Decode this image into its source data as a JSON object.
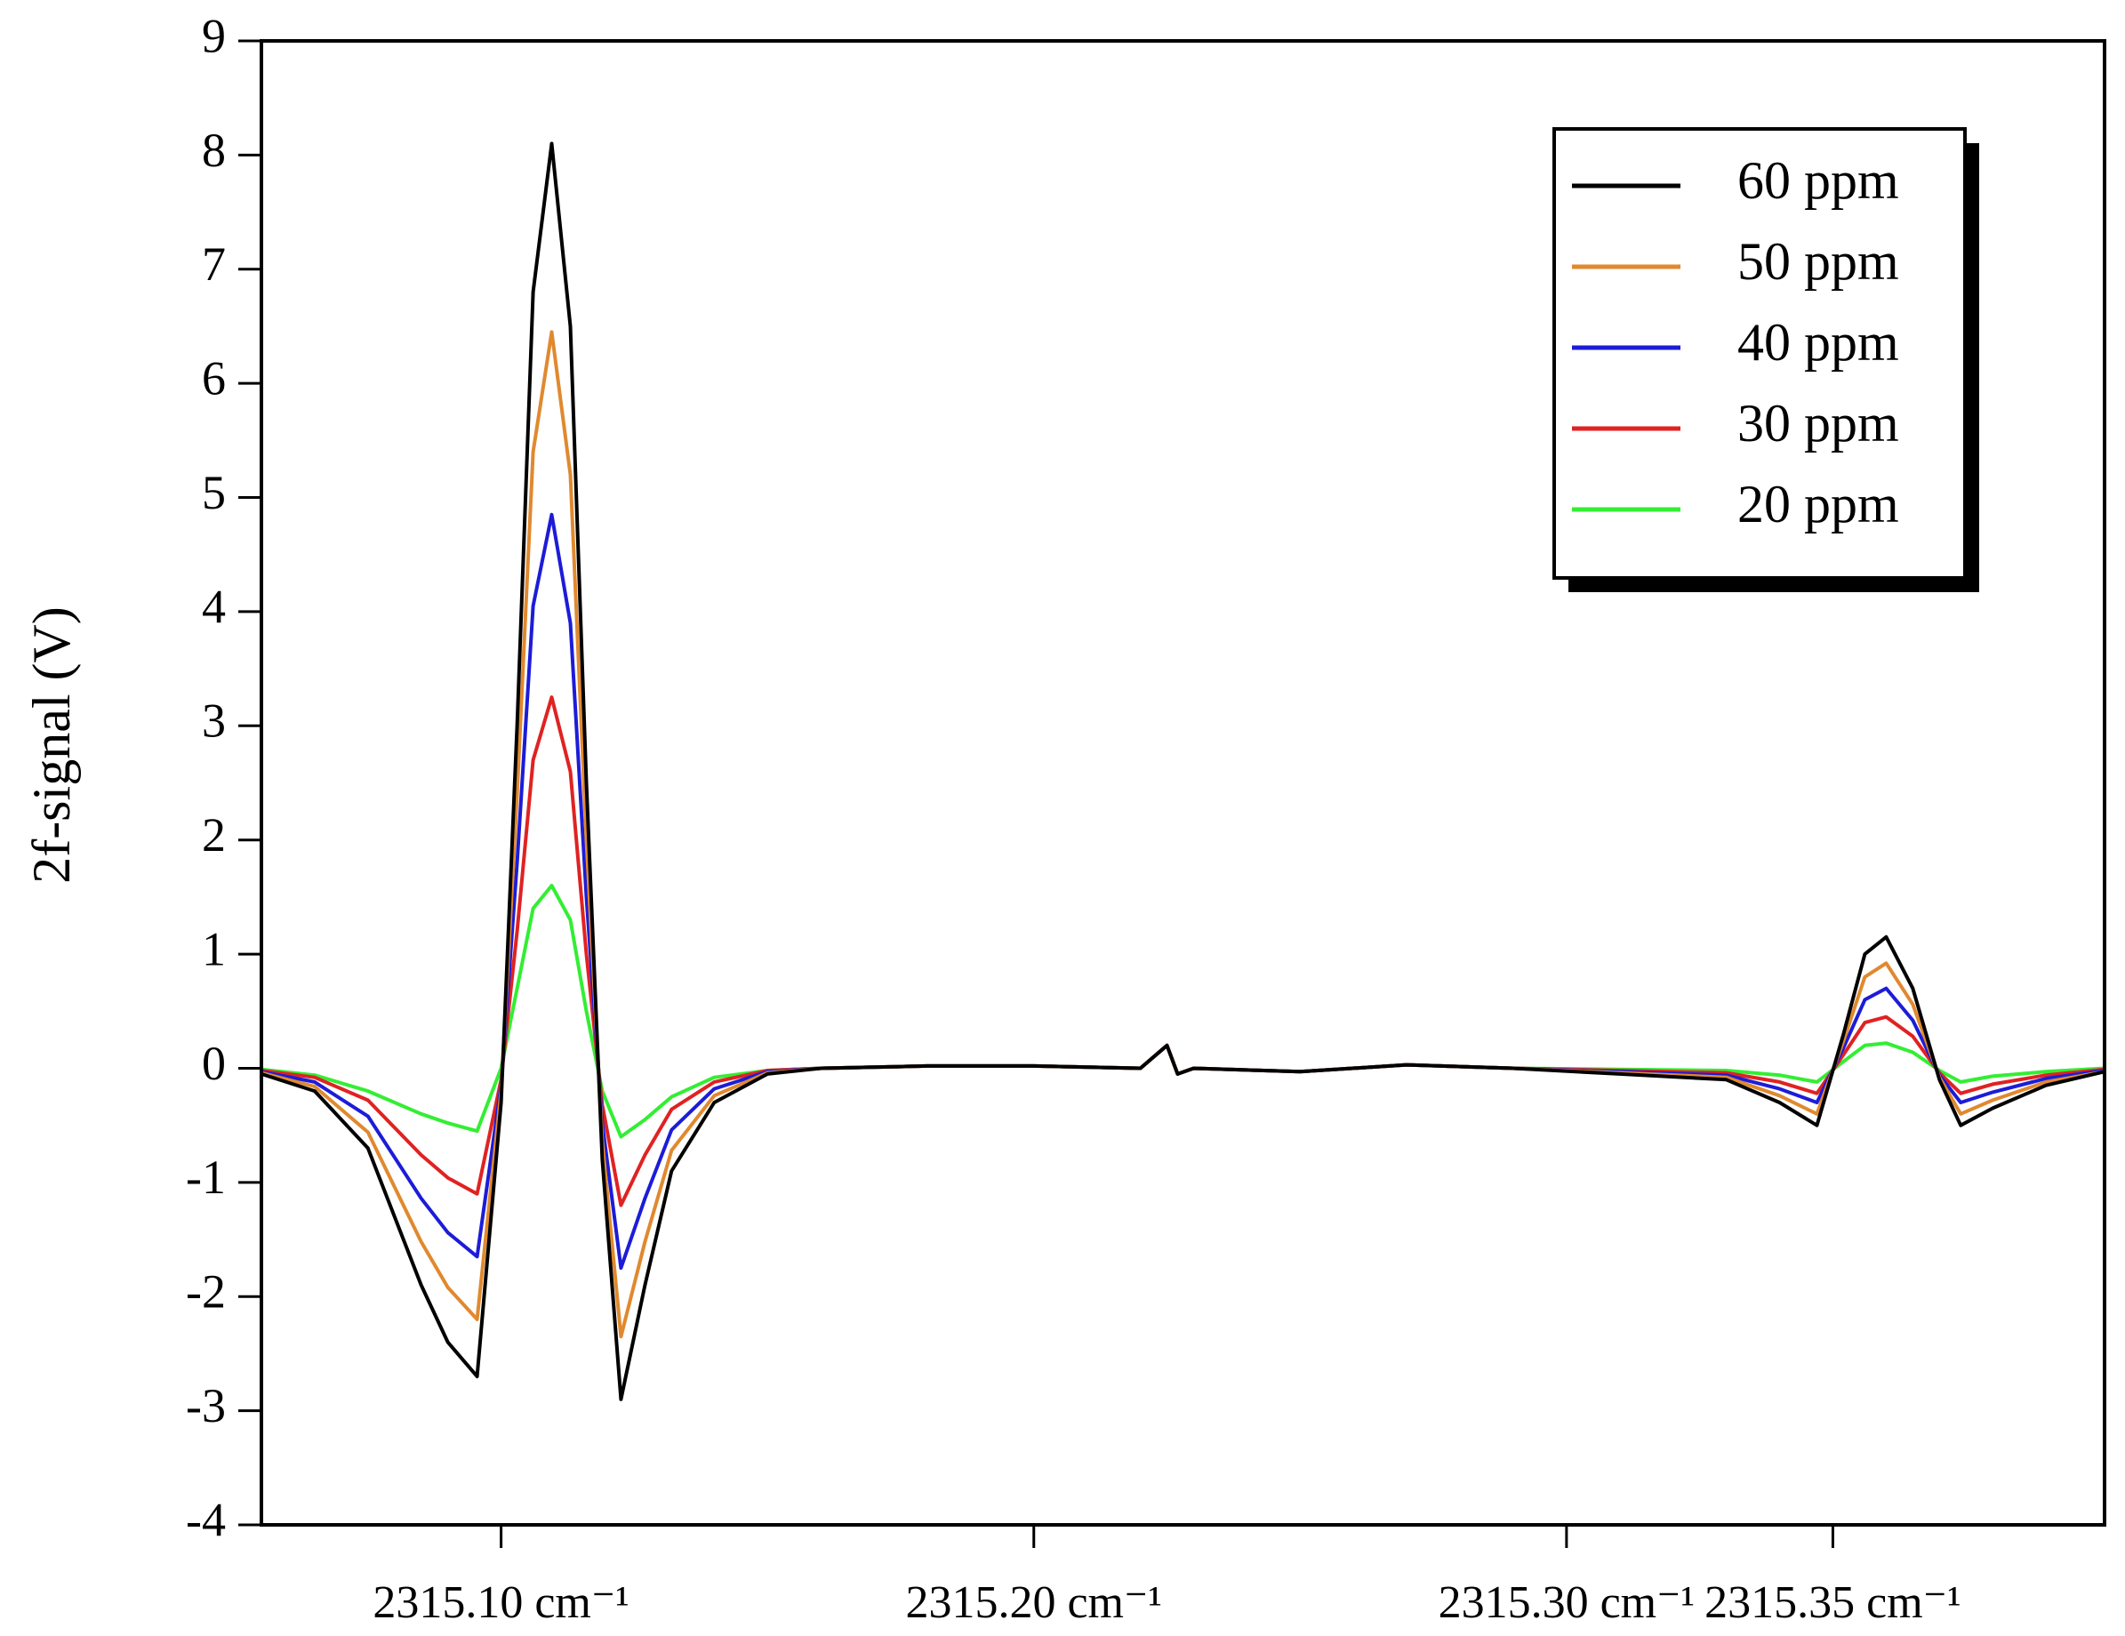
{
  "chart_data": {
    "type": "line",
    "y_label": "2f-signal (V)",
    "x": [
      2315.055,
      2315.065,
      2315.075,
      2315.085,
      2315.09,
      2315.0955,
      2315.1,
      2315.103,
      2315.106,
      2315.1095,
      2315.113,
      2315.116,
      2315.119,
      2315.1225,
      2315.127,
      2315.132,
      2315.14,
      2315.15,
      2315.16,
      2315.18,
      2315.2,
      2315.22,
      2315.225,
      2315.227,
      2315.23,
      2315.25,
      2315.27,
      2315.29,
      2315.31,
      2315.33,
      2315.34,
      2315.347,
      2315.352,
      2315.356,
      2315.36,
      2315.365,
      2315.37,
      2315.374,
      2315.38,
      2315.39,
      2315.401
    ],
    "series": [
      {
        "name": "60 ppm",
        "color": "#000000",
        "values": [
          -0.05,
          -0.2,
          -0.7,
          -1.9,
          -2.4,
          -2.7,
          -0.3,
          3.0,
          6.8,
          8.1,
          6.5,
          2.5,
          -0.8,
          -2.9,
          -1.9,
          -0.9,
          -0.3,
          -0.05,
          0,
          0.02,
          0.02,
          0,
          0.2,
          -0.05,
          0,
          -0.03,
          0.03,
          0,
          -0.05,
          -0.1,
          -0.3,
          -0.5,
          0.3,
          1.0,
          1.15,
          0.7,
          -0.1,
          -0.5,
          -0.35,
          -0.15,
          -0.03
        ]
      },
      {
        "name": "50 ppm",
        "color": "#e0892f",
        "values": [
          -0.04,
          -0.16,
          -0.56,
          -1.52,
          -1.92,
          -2.2,
          -0.2,
          2.4,
          5.4,
          6.45,
          5.2,
          2.0,
          -0.64,
          -2.35,
          -1.52,
          -0.72,
          -0.24,
          -0.04,
          0,
          0.02,
          0.02,
          0,
          0.2,
          -0.05,
          0,
          -0.03,
          0.03,
          0,
          -0.04,
          -0.08,
          -0.24,
          -0.4,
          0.24,
          0.8,
          0.92,
          0.56,
          -0.08,
          -0.4,
          -0.28,
          -0.12,
          -0.03
        ]
      },
      {
        "name": "40 ppm",
        "color": "#1c1cd8",
        "values": [
          -0.03,
          -0.12,
          -0.42,
          -1.14,
          -1.44,
          -1.65,
          -0.15,
          1.8,
          4.05,
          4.85,
          3.9,
          1.5,
          -0.48,
          -1.75,
          -1.14,
          -0.54,
          -0.18,
          -0.03,
          0,
          0.02,
          0.02,
          0,
          0.2,
          -0.05,
          0,
          -0.03,
          0.03,
          0,
          -0.03,
          -0.06,
          -0.18,
          -0.3,
          0.18,
          0.6,
          0.7,
          0.42,
          -0.06,
          -0.3,
          -0.21,
          -0.09,
          -0.02
        ]
      },
      {
        "name": "30 ppm",
        "color": "#e02222",
        "values": [
          -0.02,
          -0.08,
          -0.28,
          -0.76,
          -0.96,
          -1.1,
          -0.1,
          1.2,
          2.7,
          3.25,
          2.6,
          1.0,
          -0.32,
          -1.2,
          -0.76,
          -0.36,
          -0.12,
          -0.02,
          0,
          0.02,
          0.02,
          0,
          0.2,
          -0.05,
          0,
          -0.03,
          0.03,
          0,
          -0.02,
          -0.04,
          -0.12,
          -0.22,
          0.12,
          0.4,
          0.45,
          0.28,
          -0.04,
          -0.22,
          -0.14,
          -0.06,
          -0.01
        ]
      },
      {
        "name": "20 ppm",
        "color": "#33ee33",
        "values": [
          -0.01,
          -0.06,
          -0.2,
          -0.4,
          -0.48,
          -0.55,
          0.0,
          0.7,
          1.4,
          1.6,
          1.3,
          0.5,
          -0.2,
          -0.6,
          -0.45,
          -0.25,
          -0.08,
          -0.02,
          0,
          0.02,
          0.02,
          0,
          0.2,
          -0.05,
          0,
          -0.03,
          0.03,
          0,
          -0.01,
          -0.02,
          -0.06,
          -0.12,
          0.06,
          0.2,
          0.22,
          0.14,
          -0.02,
          -0.12,
          -0.07,
          -0.03,
          0
        ]
      }
    ],
    "xlim": [
      2315.055,
      2315.401
    ],
    "xticks": [
      {
        "value": 2315.1,
        "label": "2315.10 cm⁻¹"
      },
      {
        "value": 2315.2,
        "label": "2315.20 cm⁻¹"
      },
      {
        "value": 2315.3,
        "label": "2315.30 cm⁻¹"
      },
      {
        "value": 2315.35,
        "label": "2315.35 cm⁻¹"
      }
    ],
    "ylim": [
      -4,
      9
    ],
    "yticks": [
      -4,
      -3,
      -2,
      -1,
      0,
      1,
      2,
      3,
      4,
      5,
      6,
      7,
      8,
      9
    ],
    "grid": false,
    "legend": "upper right"
  }
}
